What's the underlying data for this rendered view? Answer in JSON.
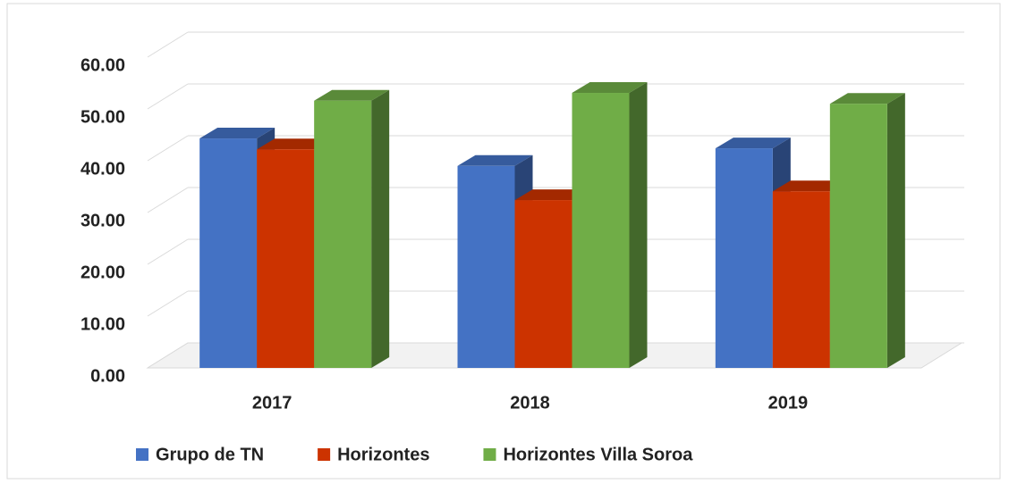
{
  "chart_data": {
    "type": "bar3d",
    "categories": [
      "2017",
      "2018",
      "2019"
    ],
    "series": [
      {
        "name": "Grupo de TN",
        "color": "#4472c4",
        "values": [
          44.3,
          39.0,
          42.4
        ]
      },
      {
        "name": "Horizontes",
        "color": "#cc3300",
        "values": [
          42.2,
          32.4,
          34.1
        ]
      },
      {
        "name": "Horizontes Villa Soroa",
        "color": "#70ad47",
        "values": [
          51.6,
          53.1,
          51.0
        ]
      }
    ],
    "ylim": [
      0,
      60
    ],
    "yticks": [
      {
        "value": 0,
        "label": "0.00"
      },
      {
        "value": 10,
        "label": "10.00"
      },
      {
        "value": 20,
        "label": "20.00"
      },
      {
        "value": 30,
        "label": "30.00"
      },
      {
        "value": 40,
        "label": "40.00"
      },
      {
        "value": 50,
        "label": "50.00"
      },
      {
        "value": 60,
        "label": "60.00"
      }
    ],
    "grid": true,
    "legend": "bottom"
  }
}
